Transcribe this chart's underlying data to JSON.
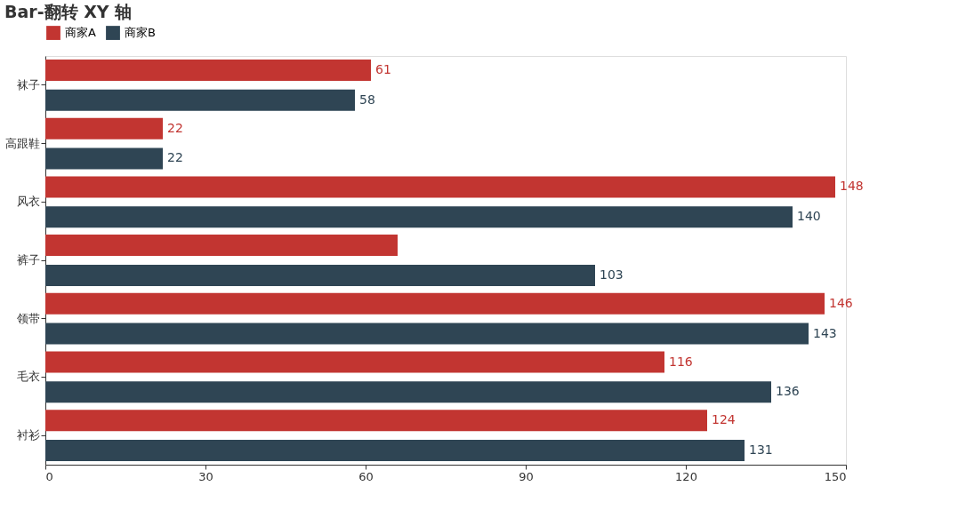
{
  "chart_data": {
    "type": "bar",
    "orientation": "horizontal",
    "title": "Bar-翻转 XY 轴",
    "categories": [
      "袜子",
      "高跟鞋",
      "风衣",
      "裤子",
      "领带",
      "毛衣",
      "衬衫"
    ],
    "series": [
      {
        "name": "商家A",
        "color": "#c23531",
        "values": [
          61,
          22,
          148,
          66,
          146,
          116,
          124
        ],
        "value_labels": [
          "61",
          "22",
          "148",
          null,
          "146",
          "116",
          "124"
        ]
      },
      {
        "name": "商家B",
        "color": "#2f4554",
        "values": [
          58,
          22,
          140,
          103,
          143,
          136,
          131
        ],
        "value_labels": [
          "58",
          "22",
          "140",
          "103",
          "143",
          "136",
          "131"
        ]
      }
    ],
    "xlim": [
      0,
      150
    ],
    "xticks": [
      0,
      30,
      60,
      90,
      120,
      150
    ],
    "grid": false,
    "legend": "top"
  }
}
